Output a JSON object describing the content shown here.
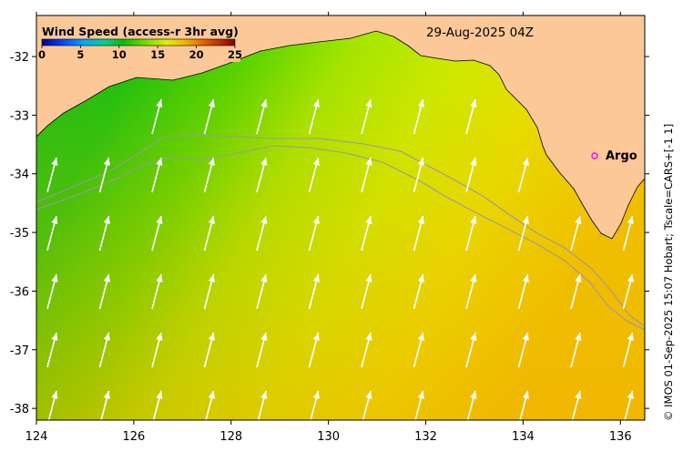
{
  "map": {
    "colorbar": {
      "title": "Wind Speed (access-r 3hr avg)",
      "ticks": [
        "0",
        "5",
        "10",
        "15",
        "20",
        "25"
      ],
      "tick_values": [
        0,
        5,
        10,
        15,
        20,
        25
      ],
      "vmin": 0,
      "vmax": 25,
      "colors": [
        "#00008b",
        "#0050ff",
        "#00b4ff",
        "#00d070",
        "#00c000",
        "#50d800",
        "#a0e600",
        "#e0f000",
        "#f0d000",
        "#f0a000",
        "#e06000",
        "#c02000",
        "#8b0000"
      ]
    },
    "timestamp": "29-Aug-2025 04Z",
    "station_label": "Argo",
    "credit": "© IMOS 01-Sep-2025 15:07 Hobart; Tscale=CARS+[-1 1]",
    "x_ticks": [
      "124",
      "126",
      "128",
      "130",
      "132",
      "134",
      "136"
    ],
    "x_tick_values": [
      124,
      126,
      128,
      130,
      132,
      134,
      136
    ],
    "y_ticks": [
      "-32",
      "-33",
      "-34",
      "-35",
      "-36",
      "-37",
      "-38"
    ],
    "y_tick_values": [
      -32,
      -33,
      -34,
      -35,
      -36,
      -37,
      -38
    ],
    "lon_range": [
      124,
      136.5
    ],
    "lat_range": [
      -38.2,
      -31.3
    ],
    "land_color": "#fdc898",
    "argo_marker_color": "#ff00ff",
    "contour_color": "#9a9a9a",
    "wind_direction": "from south-southwest (arrows point north-northeast)"
  }
}
